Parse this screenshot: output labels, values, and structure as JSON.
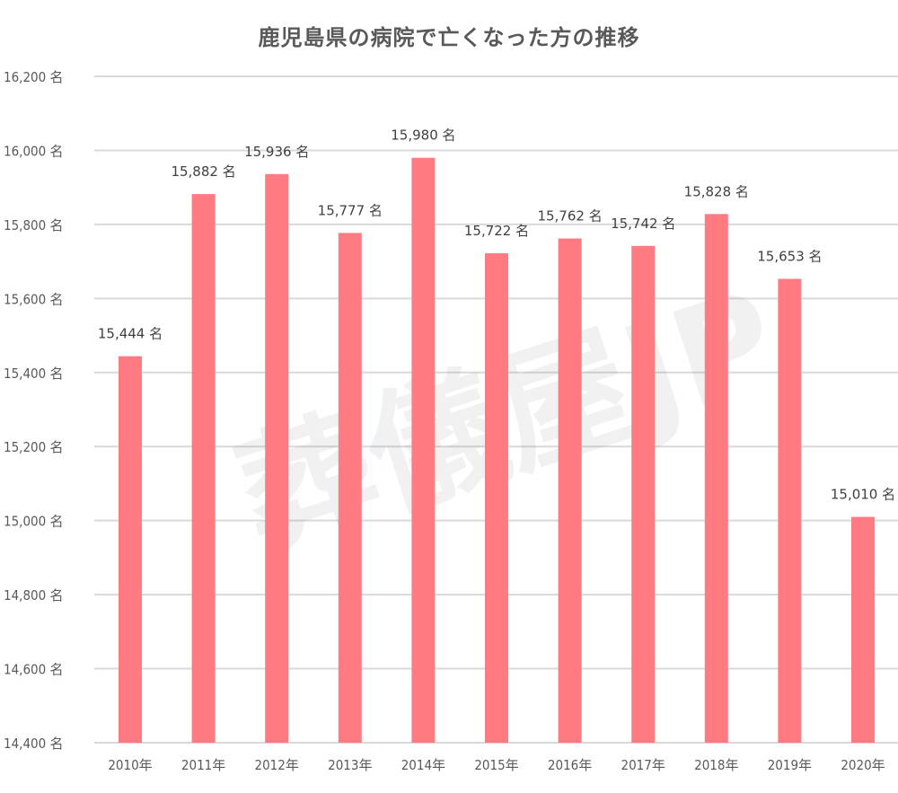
{
  "chart_data": {
    "type": "bar",
    "title": "鹿児島県の病院で亡くなった方の推移",
    "xlabel": "",
    "ylabel": "",
    "ylim": [
      14400,
      16200
    ],
    "yticks": [
      14400,
      14600,
      14800,
      15000,
      15200,
      15400,
      15600,
      15800,
      16000,
      16200
    ],
    "ytick_labels": [
      "14,400 名",
      "14,600 名",
      "14,800 名",
      "15,000 名",
      "15,200 名",
      "15,400 名",
      "15,600 名",
      "15,800 名",
      "16,000 名",
      "16,200 名"
    ],
    "categories": [
      "2010年",
      "2011年",
      "2012年",
      "2013年",
      "2014年",
      "2015年",
      "2016年",
      "2017年",
      "2018年",
      "2019年",
      "2020年"
    ],
    "values": [
      15444,
      15882,
      15936,
      15777,
      15980,
      15722,
      15762,
      15742,
      15828,
      15653,
      15010
    ],
    "data_labels": [
      "15,444 名",
      "15,882 名",
      "15,936 名",
      "15,777 名",
      "15,980 名",
      "15,722 名",
      "15,762 名",
      "15,742 名",
      "15,828 名",
      "15,653 名",
      "15,010 名"
    ],
    "grid": true,
    "legend": "none",
    "bar_color": "#FF7B81",
    "grid_color": "#D9D9D9"
  },
  "watermark": "葬儀屋JP"
}
